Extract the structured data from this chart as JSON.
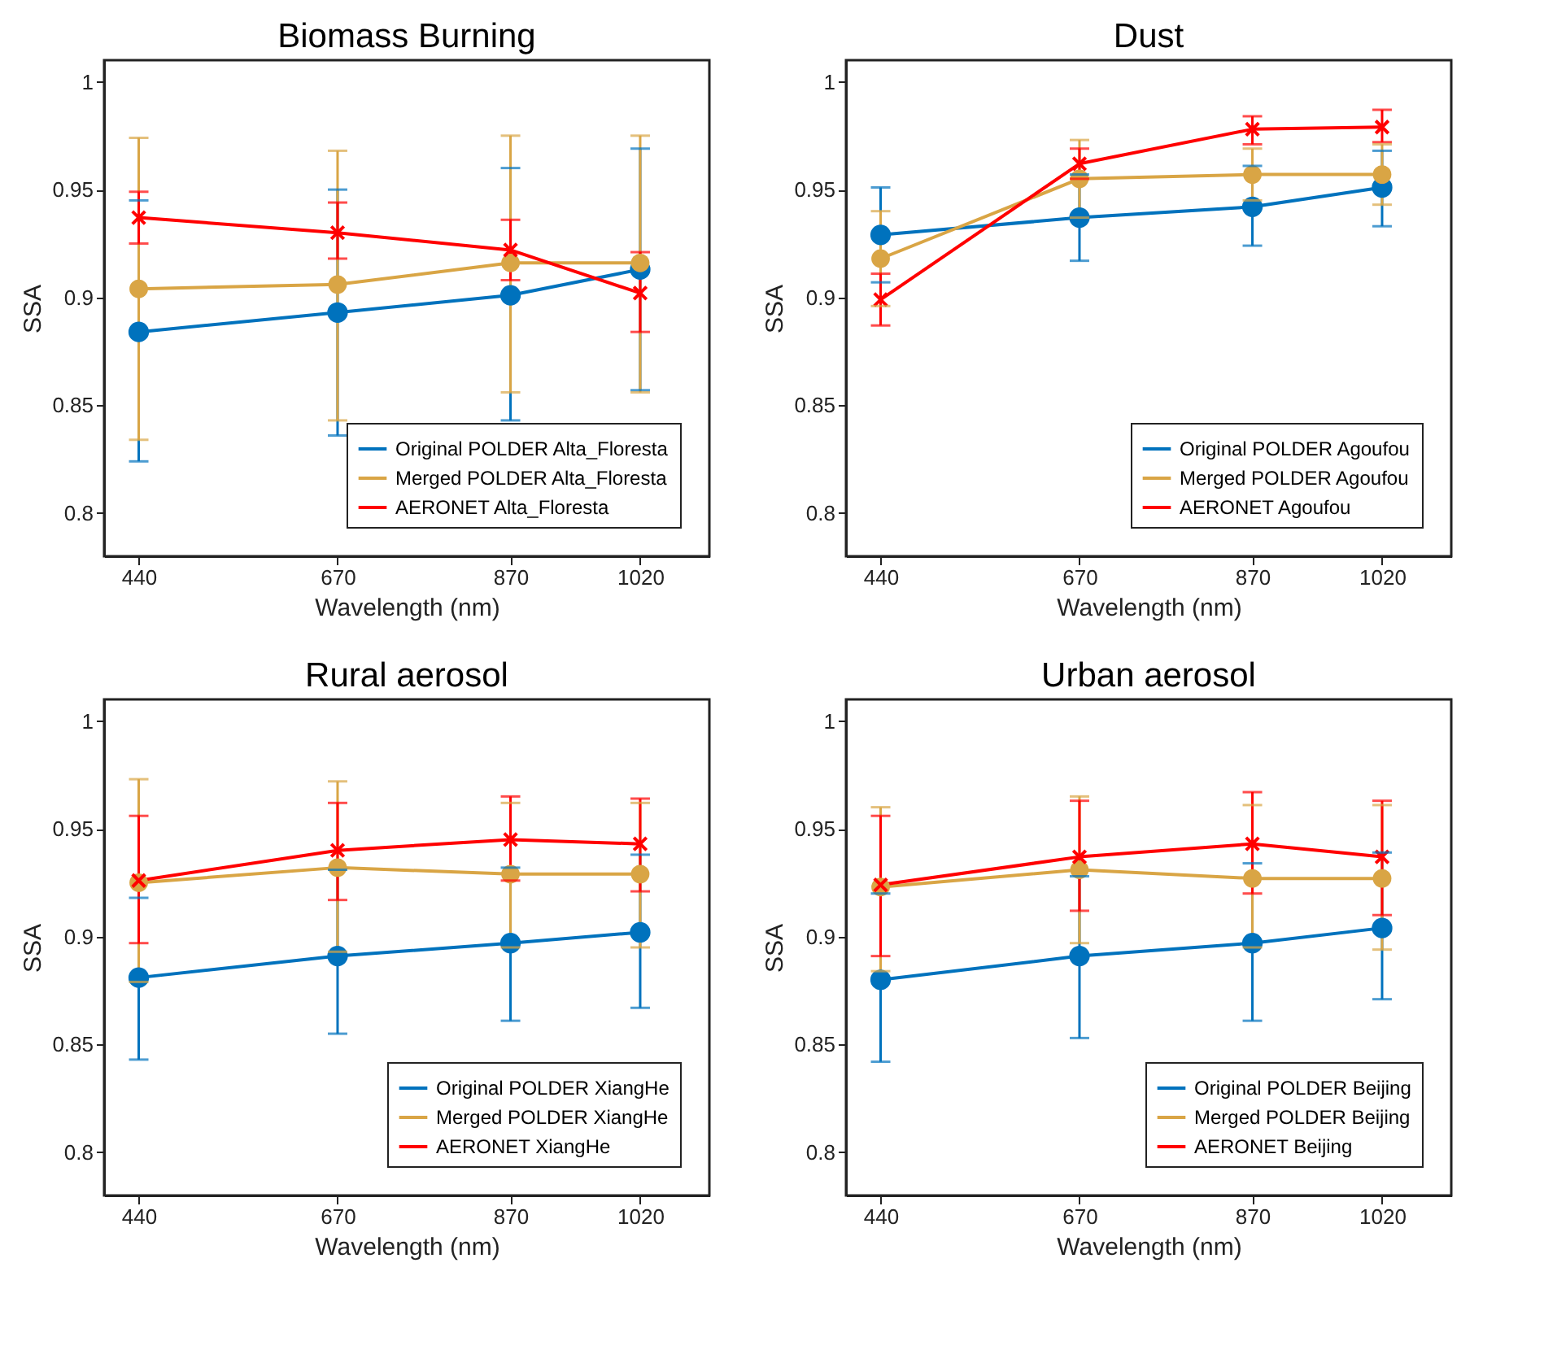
{
  "chart_data": [
    {
      "type": "line",
      "title": "Biomass Burning",
      "xlabel": "Wavelength (nm)",
      "ylabel": "SSA",
      "x": [
        440,
        670,
        870,
        1020
      ],
      "xlim": [
        400,
        1100
      ],
      "xticks": [
        440,
        670,
        870,
        1020
      ],
      "ylim": [
        0.78,
        1.01
      ],
      "yticks": [
        0.8,
        0.85,
        0.9,
        0.95,
        1
      ],
      "grid": false,
      "legend": "bottom right",
      "line_style": "solid",
      "series": [
        {
          "name": "Original POLDER Alta_Floresta",
          "color": "#0072bd",
          "marker": "circle",
          "values": [
            0.884,
            0.893,
            0.901,
            0.913
          ],
          "errors": [
            [
              0.824,
              0.945
            ],
            [
              0.836,
              0.95
            ],
            [
              0.843,
              0.96
            ],
            [
              0.857,
              0.969
            ]
          ]
        },
        {
          "name": "Merged POLDER Alta_Floresta",
          "color": "#d9a545",
          "marker": "circle",
          "values": [
            0.904,
            0.906,
            0.916,
            0.916
          ],
          "errors": [
            [
              0.834,
              0.974
            ],
            [
              0.843,
              0.968
            ],
            [
              0.856,
              0.975
            ],
            [
              0.856,
              0.975
            ]
          ]
        },
        {
          "name": "AERONET Alta_Floresta",
          "color": "#ff0000",
          "marker": "cross",
          "values": [
            0.937,
            0.93,
            0.922,
            0.902
          ],
          "errors": [
            [
              0.925,
              0.949
            ],
            [
              0.918,
              0.944
            ],
            [
              0.908,
              0.936
            ],
            [
              0.884,
              0.921
            ]
          ]
        }
      ]
    },
    {
      "type": "line",
      "title": "Dust",
      "xlabel": "Wavelength (nm)",
      "ylabel": "SSA",
      "x": [
        440,
        670,
        870,
        1020
      ],
      "xlim": [
        400,
        1100
      ],
      "xticks": [
        440,
        670,
        870,
        1020
      ],
      "ylim": [
        0.78,
        1.01
      ],
      "yticks": [
        0.8,
        0.85,
        0.9,
        0.95,
        1
      ],
      "grid": false,
      "legend": "bottom right",
      "line_style": "solid",
      "series": [
        {
          "name": "Original POLDER Agoufou",
          "color": "#0072bd",
          "marker": "circle",
          "values": [
            0.929,
            0.937,
            0.942,
            0.951
          ],
          "errors": [
            [
              0.907,
              0.951
            ],
            [
              0.917,
              0.957
            ],
            [
              0.924,
              0.961
            ],
            [
              0.933,
              0.968
            ]
          ]
        },
        {
          "name": "Merged POLDER Agoufou",
          "color": "#d9a545",
          "marker": "circle",
          "values": [
            0.918,
            0.955,
            0.957,
            0.957
          ],
          "errors": [
            [
              0.896,
              0.94
            ],
            [
              0.937,
              0.973
            ],
            [
              0.945,
              0.969
            ],
            [
              0.943,
              0.971
            ]
          ]
        },
        {
          "name": "AERONET Agoufou",
          "color": "#ff0000",
          "marker": "cross",
          "values": [
            0.899,
            0.962,
            0.978,
            0.979
          ],
          "errors": [
            [
              0.887,
              0.911
            ],
            [
              0.955,
              0.969
            ],
            [
              0.971,
              0.984
            ],
            [
              0.972,
              0.987
            ]
          ]
        }
      ]
    },
    {
      "type": "line",
      "title": "Rural aerosol",
      "xlabel": "Wavelength (nm)",
      "ylabel": "SSA",
      "x": [
        440,
        670,
        870,
        1020
      ],
      "xlim": [
        400,
        1100
      ],
      "xticks": [
        440,
        670,
        870,
        1020
      ],
      "ylim": [
        0.78,
        1.01
      ],
      "yticks": [
        0.8,
        0.85,
        0.9,
        0.95,
        1
      ],
      "grid": false,
      "legend": "bottom right",
      "line_style": "solid",
      "series": [
        {
          "name": "Original POLDER XiangHe",
          "color": "#0072bd",
          "marker": "circle",
          "values": [
            0.881,
            0.891,
            0.897,
            0.902
          ],
          "errors": [
            [
              0.843,
              0.918
            ],
            [
              0.855,
              0.931
            ],
            [
              0.861,
              0.932
            ],
            [
              0.867,
              0.938
            ]
          ]
        },
        {
          "name": "Merged POLDER XiangHe",
          "color": "#d9a545",
          "marker": "circle",
          "values": [
            0.925,
            0.932,
            0.929,
            0.929
          ],
          "errors": [
            [
              0.879,
              0.973
            ],
            [
              0.893,
              0.972
            ],
            [
              0.895,
              0.962
            ],
            [
              0.895,
              0.962
            ]
          ]
        },
        {
          "name": "AERONET XiangHe",
          "color": "#ff0000",
          "marker": "cross",
          "values": [
            0.926,
            0.94,
            0.945,
            0.943
          ],
          "errors": [
            [
              0.897,
              0.956
            ],
            [
              0.917,
              0.962
            ],
            [
              0.926,
              0.965
            ],
            [
              0.921,
              0.964
            ]
          ]
        }
      ]
    },
    {
      "type": "line",
      "title": "Urban aerosol",
      "xlabel": "Wavelength (nm)",
      "ylabel": "SSA",
      "x": [
        440,
        670,
        870,
        1020
      ],
      "xlim": [
        400,
        1100
      ],
      "xticks": [
        440,
        670,
        870,
        1020
      ],
      "ylim": [
        0.78,
        1.01
      ],
      "yticks": [
        0.8,
        0.85,
        0.9,
        0.95,
        1
      ],
      "grid": false,
      "legend": "bottom right",
      "line_style": "solid",
      "series": [
        {
          "name": "Original POLDER Beijing",
          "color": "#0072bd",
          "marker": "circle",
          "values": [
            0.88,
            0.891,
            0.897,
            0.904
          ],
          "errors": [
            [
              0.842,
              0.92
            ],
            [
              0.853,
              0.928
            ],
            [
              0.861,
              0.934
            ],
            [
              0.871,
              0.939
            ]
          ]
        },
        {
          "name": "Merged POLDER Beijing",
          "color": "#d9a545",
          "marker": "circle",
          "values": [
            0.923,
            0.931,
            0.927,
            0.927
          ],
          "errors": [
            [
              0.884,
              0.96
            ],
            [
              0.897,
              0.965
            ],
            [
              0.895,
              0.961
            ],
            [
              0.894,
              0.961
            ]
          ]
        },
        {
          "name": "AERONET Beijing",
          "color": "#ff0000",
          "marker": "cross",
          "values": [
            0.924,
            0.937,
            0.943,
            0.937
          ],
          "errors": [
            [
              0.891,
              0.956
            ],
            [
              0.912,
              0.963
            ],
            [
              0.92,
              0.967
            ],
            [
              0.91,
              0.963
            ]
          ]
        }
      ]
    }
  ]
}
